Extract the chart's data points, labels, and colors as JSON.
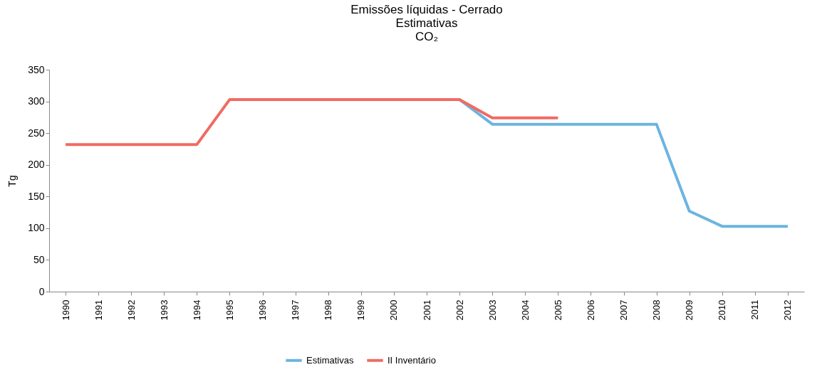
{
  "chart_data": {
    "type": "line",
    "title": "Emissões líquidas - Cerrado\nEstimativas\nCO₂",
    "ylabel": "Tg",
    "categories": [
      "1990",
      "1991",
      "1992",
      "1993",
      "1994",
      "1995",
      "1996",
      "1997",
      "1998",
      "1999",
      "2000",
      "2001",
      "2002",
      "2003",
      "2004",
      "2005",
      "2006",
      "2007",
      "2008",
      "2009",
      "2010",
      "2011",
      "2012"
    ],
    "series": [
      {
        "name": "Estimativas",
        "color": "#6cb4e0",
        "values": [
          null,
          null,
          null,
          null,
          null,
          null,
          null,
          null,
          null,
          null,
          null,
          null,
          303,
          264,
          264,
          264,
          264,
          264,
          264,
          127,
          103,
          103,
          103
        ]
      },
      {
        "name": "II Inventário",
        "color": "#f06b63",
        "values": [
          232,
          232,
          232,
          232,
          232,
          303,
          303,
          303,
          303,
          303,
          303,
          303,
          303,
          274,
          274,
          274,
          null,
          null,
          null,
          null,
          null,
          null,
          null
        ]
      }
    ],
    "ylim": [
      0,
      350
    ],
    "yticks": [
      0,
      50,
      100,
      150,
      200,
      250,
      300,
      350
    ],
    "grid": false,
    "legend": "bottom",
    "marker": "none",
    "line_style": "solid"
  }
}
